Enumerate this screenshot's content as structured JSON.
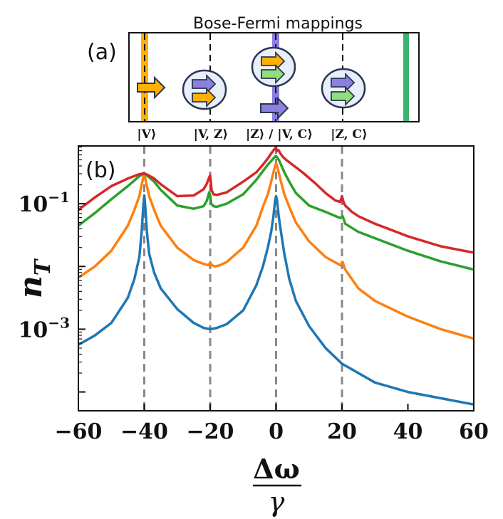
{
  "panel_a": {
    "title": "Bose-Fermi mappings",
    "label": "(a)",
    "state_labels": [
      "|V⟩",
      "|V, Z⟩",
      "|Z⟩ / |V, C⟩",
      "|Z, C⟩"
    ]
  },
  "panel_b": {
    "label": "(b)"
  },
  "colors": {
    "blue": "#1f77b4",
    "orange": "#ff7f0e",
    "green": "#2ca02c",
    "red": "#d62728",
    "purple": "#8b7fe0",
    "light_green": "#8fe07a",
    "yellow": "#ffb000",
    "circle_fill": "#e8eefa",
    "circle_stroke": "#2a3550",
    "dashed_gray": "#888888"
  },
  "chart_data": {
    "type": "line",
    "xlabel": "Δω / γ",
    "xlabel_num": "Δω",
    "xlabel_den": "γ",
    "ylabel": "n_T",
    "ylabel_base": "n",
    "ylabel_sub": "T",
    "yscale": "log",
    "xlim": [
      -60,
      60
    ],
    "ylim_log10": [
      -4.3,
      -0.08
    ],
    "x_ticks": [
      -60,
      -40,
      -20,
      0,
      20,
      40,
      60
    ],
    "x_tick_labels": [
      "−60",
      "−40",
      "−20",
      "0",
      "20",
      "40",
      "60"
    ],
    "y_ticks": [
      {
        "base": "10",
        "exp": "−1",
        "value": 0.1
      },
      {
        "base": "10",
        "exp": "−3",
        "value": 0.001
      }
    ],
    "vlines_x": [
      -40,
      -20,
      0,
      20
    ],
    "series": [
      {
        "color": "blue",
        "x": [
          -60,
          -55,
          -50,
          -45,
          -43,
          -41.5,
          -40.8,
          -40.3,
          -40,
          -39.7,
          -39.2,
          -38.5,
          -37,
          -35,
          -30,
          -25,
          -22,
          -20,
          -18,
          -15,
          -10,
          -6,
          -4,
          -2.5,
          -1.5,
          -0.8,
          -0.3,
          0,
          0.3,
          0.8,
          1.5,
          2.5,
          4,
          6,
          10,
          15,
          20,
          30,
          40,
          50,
          60
        ],
        "log10_y": [
          -3.25,
          -3.1,
          -2.9,
          -2.5,
          -2.2,
          -1.85,
          -1.45,
          -1.05,
          -0.87,
          -1.05,
          -1.45,
          -1.8,
          -2.1,
          -2.35,
          -2.68,
          -2.9,
          -2.98,
          -3.0,
          -2.98,
          -2.92,
          -2.7,
          -2.3,
          -2.0,
          -1.7,
          -1.45,
          -1.2,
          -0.95,
          -0.88,
          -0.95,
          -1.2,
          -1.45,
          -1.8,
          -2.2,
          -2.55,
          -2.95,
          -3.3,
          -3.55,
          -3.85,
          -4.0,
          -4.1,
          -4.2
        ]
      },
      {
        "color": "orange",
        "x": [
          -60,
          -55,
          -50,
          -45,
          -43,
          -41.5,
          -40.8,
          -40.3,
          -40,
          -39.7,
          -39.2,
          -38.5,
          -37,
          -35,
          -30,
          -25,
          -22,
          -20.5,
          -20,
          -19.5,
          -18.5,
          -17,
          -15,
          -10,
          -6,
          -4,
          -2.5,
          -1.5,
          -0.8,
          -0.3,
          0,
          0.3,
          0.8,
          1.5,
          2.5,
          4,
          6,
          10,
          15,
          19.5,
          20.2,
          21,
          25,
          30,
          40,
          50,
          60
        ],
        "log10_y": [
          -2.18,
          -2.0,
          -1.75,
          -1.35,
          -1.1,
          -0.88,
          -0.7,
          -0.58,
          -0.53,
          -0.6,
          -0.72,
          -0.88,
          -1.1,
          -1.35,
          -1.7,
          -1.9,
          -1.96,
          -1.98,
          -1.94,
          -1.98,
          -2.0,
          -1.98,
          -1.93,
          -1.7,
          -1.35,
          -1.05,
          -0.85,
          -0.65,
          -0.5,
          -0.4,
          -0.36,
          -0.4,
          -0.5,
          -0.65,
          -0.85,
          -1.05,
          -1.3,
          -1.6,
          -1.85,
          -1.98,
          -1.93,
          -2.05,
          -2.35,
          -2.55,
          -2.8,
          -3.0,
          -3.15
        ]
      },
      {
        "color": "green",
        "x": [
          -60,
          -55,
          -50,
          -45,
          -43,
          -41.5,
          -40.5,
          -40,
          -39.5,
          -38.5,
          -37,
          -35,
          -30,
          -25,
          -22,
          -21,
          -20.3,
          -20,
          -19.7,
          -19,
          -18,
          -15,
          -10,
          -6,
          -4,
          -2.5,
          -1.5,
          -0.8,
          -0.3,
          0,
          0.3,
          0.8,
          1.5,
          2.5,
          4,
          6,
          10,
          15,
          19.5,
          20.2,
          21,
          25,
          30,
          40,
          50,
          60
        ],
        "log10_y": [
          -1.35,
          -1.15,
          -0.93,
          -0.72,
          -0.63,
          -0.56,
          -0.53,
          -0.52,
          -0.54,
          -0.58,
          -0.65,
          -0.78,
          -1.03,
          -1.08,
          -1.04,
          -0.95,
          -0.82,
          -0.87,
          -1.0,
          -1.04,
          -1.05,
          -1.0,
          -0.85,
          -0.62,
          -0.48,
          -0.38,
          -0.32,
          -0.28,
          -0.25,
          -0.24,
          -0.26,
          -0.3,
          -0.38,
          -0.5,
          -0.65,
          -0.83,
          -1.03,
          -1.13,
          -1.23,
          -1.2,
          -1.32,
          -1.45,
          -1.55,
          -1.75,
          -1.92,
          -2.05
        ]
      },
      {
        "color": "red",
        "x": [
          -60,
          -55,
          -50,
          -45,
          -43,
          -41.5,
          -40.5,
          -40,
          -39,
          -37,
          -35,
          -30,
          -25,
          -22,
          -21,
          -20.3,
          -20,
          -19.6,
          -19,
          -18,
          -15,
          -10,
          -6,
          -4,
          -2.5,
          -1.5,
          -0.8,
          -0.3,
          0,
          0.3,
          0.8,
          1.3,
          2,
          3,
          5,
          8,
          12,
          15,
          18,
          19.5,
          20,
          20.5,
          21,
          23,
          25,
          30,
          40,
          50,
          60
        ],
        "log10_y": [
          -1.1,
          -0.9,
          -0.72,
          -0.6,
          -0.56,
          -0.53,
          -0.52,
          -0.52,
          -0.54,
          -0.6,
          -0.69,
          -0.88,
          -0.87,
          -0.77,
          -0.68,
          -0.58,
          -0.55,
          -0.78,
          -0.85,
          -0.86,
          -0.82,
          -0.65,
          -0.5,
          -0.38,
          -0.28,
          -0.2,
          -0.15,
          -0.12,
          -0.11,
          -0.16,
          -0.15,
          -0.2,
          -0.25,
          -0.3,
          -0.38,
          -0.5,
          -0.68,
          -0.83,
          -0.95,
          -0.97,
          -0.88,
          -0.98,
          -1.03,
          -1.13,
          -1.2,
          -1.32,
          -1.52,
          -1.68,
          -1.78
        ]
      }
    ]
  }
}
